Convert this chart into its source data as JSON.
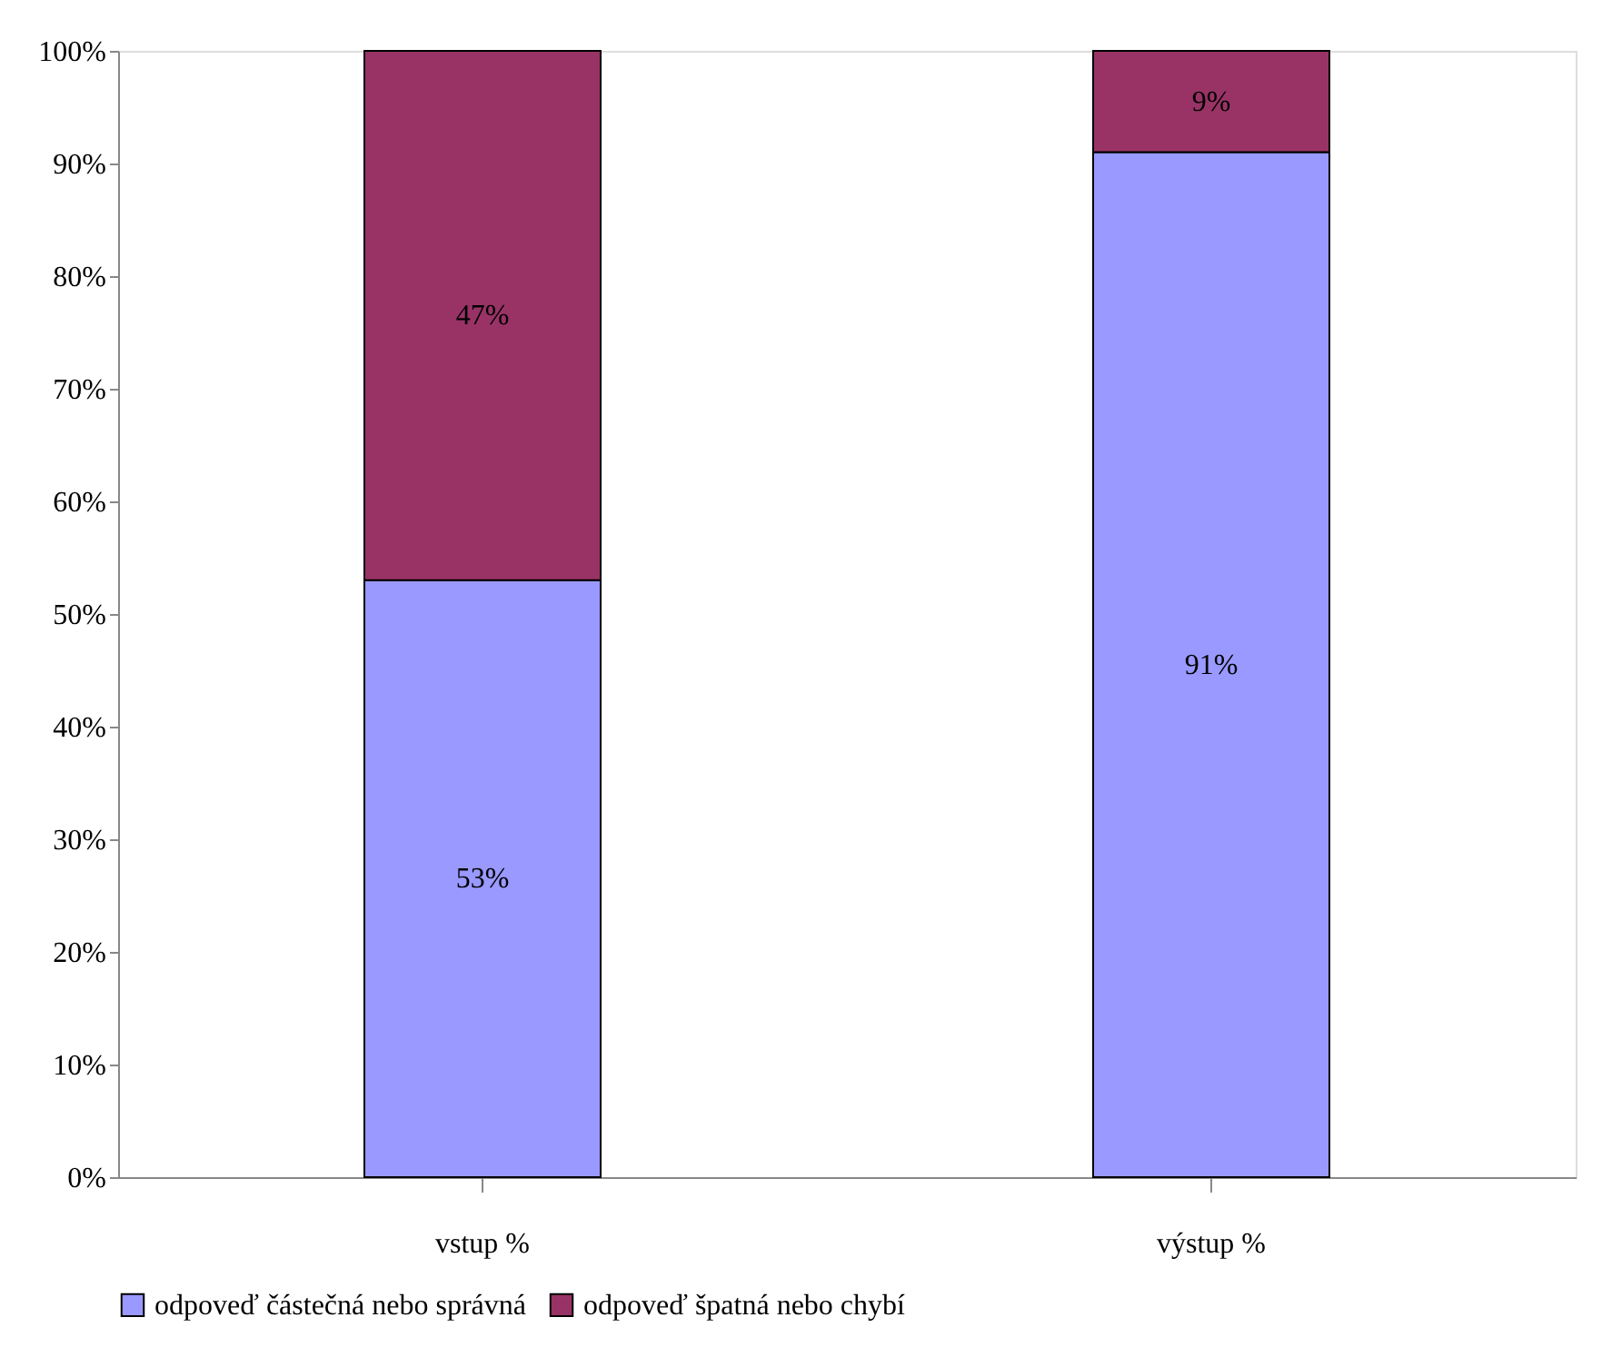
{
  "chart_data": {
    "type": "bar",
    "stacked": true,
    "categories": [
      "vstup %",
      "výstup %"
    ],
    "series": [
      {
        "name": "odpoveď částečná nebo správná",
        "color": "#9999ff",
        "values": [
          53,
          91
        ],
        "value_labels": [
          "53%",
          "91%"
        ]
      },
      {
        "name": "odpoveď špatná nebo chybí",
        "color": "#993366",
        "values": [
          47,
          9
        ],
        "value_labels": [
          "47%",
          "9%"
        ]
      }
    ],
    "ylim": [
      0,
      100
    ],
    "yticks": [
      {
        "value": 0,
        "label": "0%"
      },
      {
        "value": 10,
        "label": "10%"
      },
      {
        "value": 20,
        "label": "20%"
      },
      {
        "value": 30,
        "label": "30%"
      },
      {
        "value": 40,
        "label": "40%"
      },
      {
        "value": 50,
        "label": "50%"
      },
      {
        "value": 60,
        "label": "60%"
      },
      {
        "value": 70,
        "label": "70%"
      },
      {
        "value": 80,
        "label": "80%"
      },
      {
        "value": 90,
        "label": "90%"
      },
      {
        "value": 100,
        "label": "100%"
      }
    ],
    "grid": false,
    "legend": "bottom"
  }
}
